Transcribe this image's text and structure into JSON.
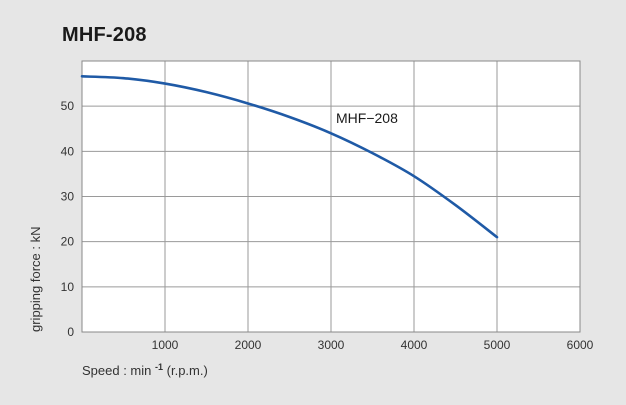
{
  "chart_data": {
    "type": "line",
    "title": "MHF-208",
    "xlabel_main": "Speed : min",
    "xlabel_sup": "-1",
    "xlabel_suffix": " (r.p.m.)",
    "ylabel": "gripping force : kN",
    "xlim": [
      0,
      6000
    ],
    "ylim": [
      0,
      60
    ],
    "x_ticks": [
      1000,
      2000,
      3000,
      4000,
      5000,
      6000
    ],
    "y_ticks": [
      0,
      10,
      20,
      30,
      40,
      50
    ],
    "grid": true,
    "series": [
      {
        "name": "MHF−208",
        "color": "#1f5aa6",
        "x": [
          0,
          500,
          1000,
          1500,
          2000,
          2500,
          3000,
          3500,
          4000,
          4500,
          5000
        ],
        "y": [
          56.6,
          56.2,
          55.0,
          53.1,
          50.6,
          47.6,
          44.0,
          39.6,
          34.5,
          28.1,
          21.0
        ]
      }
    ]
  }
}
